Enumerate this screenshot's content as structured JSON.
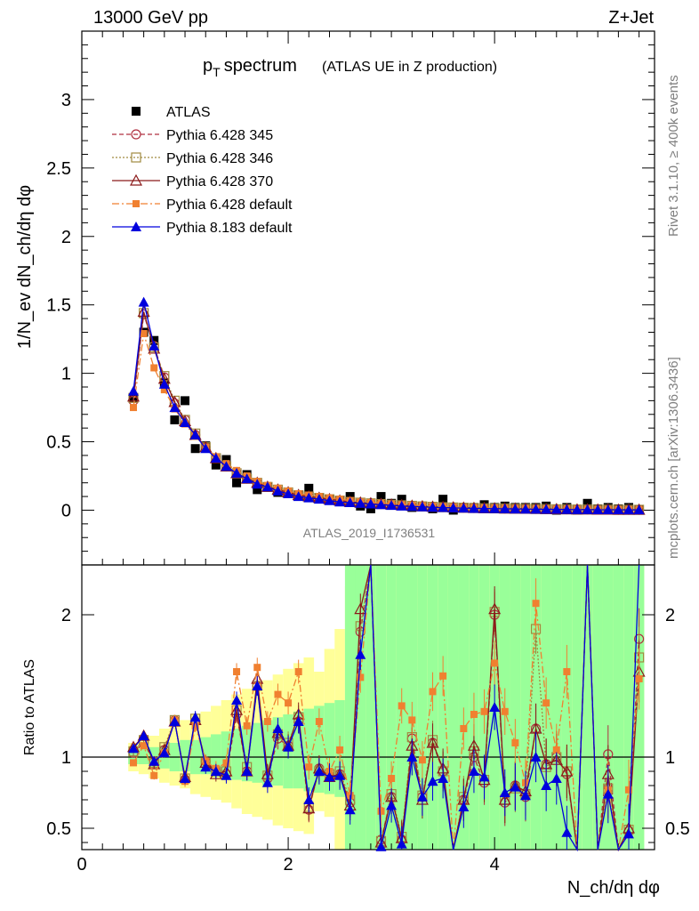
{
  "header": {
    "left": "13000 GeV pp",
    "right": "Z+Jet"
  },
  "side": {
    "top": "Rivet 3.1.10, ≥ 400k events",
    "bottom": "mcplots.cern.ch [arXiv:1306.3436]"
  },
  "chart_data": [
    {
      "type": "line",
      "panel": "main",
      "title": "p_T spectrum",
      "title_main": "p",
      "title_sub": "T",
      "title_word": "spectrum",
      "subtitle": "(ATLAS UE in Z production)",
      "ylabel": "1/N_ev dN_ch/dη dφ",
      "xlabel": "N_ch/dη dφ",
      "watermark": "ATLAS_2019_I1736531",
      "xlim": [
        0,
        5.55
      ],
      "ylim": [
        -0.4,
        3.5
      ],
      "yticks": [
        0,
        0.5,
        1,
        1.5,
        2,
        2.5,
        3
      ],
      "ytick_labels": [
        "0",
        "0.5",
        "1",
        "1.5",
        "2",
        "2.5",
        "3"
      ],
      "x": [
        0.5,
        0.6,
        0.7,
        0.8,
        0.9,
        1.0,
        1.1,
        1.2,
        1.3,
        1.4,
        1.5,
        1.6,
        1.7,
        1.8,
        1.9,
        2.0,
        2.1,
        2.2,
        2.3,
        2.4,
        2.5,
        2.6,
        2.7,
        2.8,
        2.9,
        3.0,
        3.1,
        3.2,
        3.3,
        3.4,
        3.5,
        3.6,
        3.7,
        3.8,
        3.9,
        4.0,
        4.1,
        4.2,
        4.3,
        4.4,
        4.5,
        4.6,
        4.7,
        4.8,
        4.9,
        5.0,
        5.1,
        5.2,
        5.3,
        5.4
      ],
      "series": [
        {
          "name": "ATLAS",
          "style": "data",
          "color": "#000000",
          "values": [
            0.82,
            1.3,
            1.24,
            0.93,
            0.66,
            0.8,
            0.45,
            0.47,
            0.33,
            0.37,
            0.2,
            0.26,
            0.15,
            0.17,
            0.13,
            0.12,
            0.11,
            0.16,
            0.09,
            0.08,
            0.07,
            0.1,
            0.03,
            0.01,
            0.1,
            0.05,
            0.08,
            0.02,
            0.03,
            0.01,
            0.08,
            0.0,
            0.02,
            0.02,
            0.04,
            0.02,
            0.03,
            0.02,
            0.02,
            0.02,
            0.03,
            0.0,
            0.02,
            0.0,
            0.05,
            0.01,
            0.02,
            0.01,
            0.02,
            0.0
          ]
        },
        {
          "name": "Pythia 6.428 345",
          "style": "circle",
          "color": "#b03040",
          "values": [
            0.8,
            1.43,
            1.2,
            0.97,
            0.78,
            0.66,
            0.55,
            0.46,
            0.38,
            0.32,
            0.27,
            0.23,
            0.2,
            0.17,
            0.15,
            0.13,
            0.11,
            0.1,
            0.09,
            0.08,
            0.07,
            0.06,
            0.055,
            0.05,
            0.045,
            0.04,
            0.036,
            0.032,
            0.028,
            0.025,
            0.022,
            0.02,
            0.018,
            0.016,
            0.014,
            0.013,
            0.012,
            0.011,
            0.01,
            0.009,
            0.008,
            0.007,
            0.006,
            0.005,
            0.005,
            0.004,
            0.004,
            0.003,
            0.003,
            0.003
          ]
        },
        {
          "name": "Pythia 6.428 346",
          "style": "square",
          "color": "#a08a40",
          "values": [
            0.82,
            1.44,
            1.19,
            0.98,
            0.8,
            0.66,
            0.56,
            0.46,
            0.38,
            0.32,
            0.27,
            0.23,
            0.2,
            0.17,
            0.15,
            0.13,
            0.11,
            0.1,
            0.09,
            0.08,
            0.07,
            0.06,
            0.055,
            0.05,
            0.045,
            0.04,
            0.036,
            0.032,
            0.028,
            0.025,
            0.022,
            0.02,
            0.018,
            0.016,
            0.014,
            0.013,
            0.012,
            0.011,
            0.01,
            0.009,
            0.008,
            0.007,
            0.006,
            0.005,
            0.005,
            0.004,
            0.004,
            0.003,
            0.003,
            0.003
          ]
        },
        {
          "name": "Pythia 6.428 370",
          "style": "triangle-open",
          "color": "#8b1a1a",
          "values": [
            0.83,
            1.45,
            1.18,
            0.96,
            0.79,
            0.65,
            0.55,
            0.46,
            0.38,
            0.32,
            0.27,
            0.23,
            0.2,
            0.17,
            0.15,
            0.13,
            0.11,
            0.1,
            0.09,
            0.08,
            0.07,
            0.06,
            0.055,
            0.05,
            0.045,
            0.04,
            0.036,
            0.032,
            0.028,
            0.025,
            0.022,
            0.02,
            0.018,
            0.016,
            0.014,
            0.013,
            0.012,
            0.011,
            0.01,
            0.009,
            0.008,
            0.007,
            0.006,
            0.005,
            0.005,
            0.004,
            0.004,
            0.003,
            0.003,
            0.003
          ]
        },
        {
          "name": "Pythia 6.428 default",
          "style": "square-filled",
          "color": "#f08030",
          "values": [
            0.75,
            1.29,
            1.04,
            0.88,
            0.74,
            0.63,
            0.54,
            0.46,
            0.39,
            0.34,
            0.29,
            0.25,
            0.21,
            0.18,
            0.16,
            0.14,
            0.12,
            0.11,
            0.1,
            0.09,
            0.08,
            0.07,
            0.06,
            0.055,
            0.05,
            0.045,
            0.04,
            0.036,
            0.032,
            0.028,
            0.025,
            0.022,
            0.02,
            0.018,
            0.016,
            0.015,
            0.013,
            0.012,
            0.011,
            0.01,
            0.009,
            0.008,
            0.007,
            0.006,
            0.006,
            0.005,
            0.005,
            0.004,
            0.004,
            0.004
          ]
        },
        {
          "name": "Pythia 8.183 default",
          "style": "triangle-filled",
          "color": "#0000dd",
          "values": [
            0.87,
            1.52,
            1.2,
            0.92,
            0.75,
            0.64,
            0.55,
            0.45,
            0.38,
            0.32,
            0.27,
            0.23,
            0.19,
            0.17,
            0.14,
            0.12,
            0.1,
            0.09,
            0.08,
            0.07,
            0.06,
            0.055,
            0.05,
            0.045,
            0.04,
            0.035,
            0.03,
            0.027,
            0.024,
            0.021,
            0.019,
            0.017,
            0.015,
            0.013,
            0.012,
            0.011,
            0.01,
            0.009,
            0.008,
            0.007,
            0.006,
            0.006,
            0.005,
            0.004,
            0.004,
            0.003,
            0.003,
            0.003,
            0.002,
            0.002
          ]
        }
      ]
    },
    {
      "type": "line",
      "panel": "ratio",
      "ylabel": "Ratio to ATLAS",
      "xlim": [
        0,
        5.55
      ],
      "ylim": [
        0.35,
        2.35
      ],
      "yticks": [
        0.5,
        1,
        2
      ],
      "ytick_labels": [
        "0.5",
        "1",
        "2"
      ],
      "xticks": [
        0,
        2,
        4
      ],
      "xtick_labels": [
        "0",
        "2",
        "4"
      ],
      "x": [
        0.5,
        0.6,
        0.7,
        0.8,
        0.9,
        1.0,
        1.1,
        1.2,
        1.3,
        1.4,
        1.5,
        1.6,
        1.7,
        1.8,
        1.9,
        2.0,
        2.1,
        2.2,
        2.3,
        2.4,
        2.5,
        2.6,
        2.7,
        2.8,
        2.9,
        3.0,
        3.1,
        3.2,
        3.3,
        3.4,
        3.5,
        3.6,
        3.7,
        3.8,
        3.9,
        4.0,
        4.1,
        4.2,
        4.3,
        4.4,
        4.5,
        4.6,
        4.7,
        4.8,
        4.9,
        5.0,
        5.1,
        5.2,
        5.3,
        5.4
      ],
      "band_green": [
        [
          0.95,
          1.05
        ],
        [
          0.95,
          1.06
        ],
        [
          0.93,
          1.07
        ],
        [
          0.92,
          1.08
        ],
        [
          0.9,
          1.1
        ],
        [
          0.9,
          1.12
        ],
        [
          0.88,
          1.12
        ],
        [
          0.88,
          1.14
        ],
        [
          0.86,
          1.16
        ],
        [
          0.85,
          1.18
        ],
        [
          0.84,
          1.2
        ],
        [
          0.83,
          1.22
        ],
        [
          0.82,
          1.24
        ],
        [
          0.8,
          1.26
        ],
        [
          0.8,
          1.28
        ],
        [
          0.78,
          1.3
        ],
        [
          0.78,
          1.32
        ],
        [
          0.76,
          1.34
        ],
        [
          0.75,
          1.36
        ],
        [
          0.74,
          1.38
        ],
        [
          0.72,
          1.4
        ],
        [
          0.35,
          2.35
        ],
        [
          0.35,
          2.35
        ],
        [
          0.35,
          2.35
        ],
        [
          0.35,
          2.35
        ],
        [
          0.35,
          2.35
        ],
        [
          0.35,
          2.35
        ],
        [
          0.35,
          2.35
        ],
        [
          0.35,
          2.35
        ],
        [
          0.35,
          2.35
        ],
        [
          0.35,
          2.35
        ],
        [
          0.35,
          2.35
        ],
        [
          0.35,
          2.35
        ],
        [
          0.35,
          2.35
        ],
        [
          0.35,
          2.35
        ],
        [
          0.35,
          2.35
        ],
        [
          0.35,
          2.35
        ],
        [
          0.35,
          2.35
        ],
        [
          0.35,
          2.35
        ],
        [
          0.35,
          2.35
        ],
        [
          0.35,
          2.35
        ],
        [
          0.35,
          2.35
        ],
        [
          0.35,
          2.35
        ],
        [
          0.35,
          2.35
        ],
        [
          0.35,
          2.35
        ],
        [
          0.35,
          2.35
        ],
        [
          0.35,
          2.35
        ],
        [
          0.35,
          2.35
        ],
        [
          0.35,
          2.35
        ],
        [
          0.35,
          2.35
        ]
      ],
      "band_yellow": [
        [
          0.9,
          1.1
        ],
        [
          0.88,
          1.12
        ],
        [
          0.85,
          1.15
        ],
        [
          0.82,
          1.2
        ],
        [
          0.8,
          1.24
        ],
        [
          0.78,
          1.26
        ],
        [
          0.74,
          1.3
        ],
        [
          0.72,
          1.32
        ],
        [
          0.7,
          1.36
        ],
        [
          0.68,
          1.4
        ],
        [
          0.64,
          1.44
        ],
        [
          0.6,
          1.48
        ],
        [
          0.58,
          1.5
        ],
        [
          0.56,
          1.54
        ],
        [
          0.52,
          1.58
        ],
        [
          0.5,
          1.62
        ],
        [
          0.48,
          1.66
        ],
        [
          0.46,
          1.7
        ],
        [
          0.62,
          1.6
        ],
        [
          0.58,
          1.76
        ],
        [
          0.35,
          1.9
        ],
        [
          0.35,
          2.2
        ],
        [
          0.35,
          2.35
        ],
        [
          0.35,
          2.35
        ],
        [
          0.35,
          2.35
        ],
        [
          0.35,
          2.35
        ],
        [
          0.35,
          2.35
        ],
        [
          0.35,
          2.35
        ],
        [
          0.35,
          2.35
        ],
        [
          0.35,
          2.35
        ],
        [
          0.35,
          2.35
        ],
        [
          0.35,
          2.35
        ],
        [
          0.35,
          2.35
        ],
        [
          0.35,
          2.35
        ],
        [
          0.35,
          2.35
        ],
        [
          0.35,
          2.35
        ],
        [
          0.35,
          2.35
        ],
        [
          0.35,
          2.35
        ],
        [
          0.35,
          2.35
        ],
        [
          0.35,
          2.35
        ],
        [
          0.35,
          2.35
        ],
        [
          0.35,
          2.35
        ],
        [
          0.35,
          2.35
        ],
        [
          0.35,
          2.35
        ],
        [
          0.35,
          2.35
        ],
        [
          0.35,
          2.35
        ],
        [
          0.35,
          2.35
        ],
        [
          0.35,
          2.35
        ],
        [
          0.35,
          2.35
        ],
        [
          0.35,
          2.35
        ]
      ],
      "series": [
        {
          "name": "Pythia 6.428 345",
          "style": "circle",
          "color": "#b03040",
          "values": [
            1.03,
            1.1,
            0.97,
            1.05,
            1.26,
            0.84,
            1.25,
            0.97,
            0.9,
            0.88,
            1.3,
            0.9,
            1.5,
            0.85,
            1.13,
            1.08,
            1.25,
            0.63,
            0.92,
            0.87,
            0.88,
            0.68,
            1.88,
            2.6,
            0.42,
            0.72,
            0.42,
            1.13,
            0.72,
            1.1,
            0.9,
            0.3,
            0.7,
            1.0,
            0.82,
            2.0,
            0.68,
            0.8,
            0.72,
            1.2,
            0.95,
            1.0,
            0.88,
            0.3,
            2.6,
            0.3,
            1.02,
            0.3,
            0.48,
            1.83
          ]
        },
        {
          "name": "Pythia 6.428 346",
          "style": "square",
          "color": "#a08a40",
          "values": [
            1.04,
            1.12,
            0.96,
            1.07,
            1.26,
            0.85,
            1.27,
            0.96,
            0.9,
            0.9,
            1.33,
            0.93,
            1.5,
            0.87,
            1.16,
            1.1,
            1.28,
            0.65,
            0.9,
            0.88,
            0.9,
            0.7,
            1.92,
            2.6,
            0.41,
            0.74,
            0.44,
            1.14,
            0.73,
            1.12,
            0.9,
            0.3,
            0.72,
            1.04,
            0.84,
            2.02,
            0.7,
            0.78,
            0.74,
            1.9,
            0.93,
            1.0,
            0.9,
            0.3,
            2.6,
            0.3,
            0.78,
            0.3,
            0.49,
            1.7
          ]
        },
        {
          "name": "Pythia 6.428 370",
          "style": "triangle-open",
          "color": "#8b1a1a",
          "values": [
            1.07,
            1.15,
            0.95,
            1.05,
            1.25,
            0.86,
            1.26,
            0.96,
            0.88,
            0.9,
            1.33,
            0.9,
            1.55,
            0.88,
            1.17,
            1.08,
            1.3,
            0.64,
            0.92,
            0.86,
            0.88,
            0.66,
            2.04,
            2.6,
            0.4,
            0.72,
            0.43,
            1.08,
            0.7,
            1.1,
            0.92,
            0.3,
            0.7,
            1.08,
            0.84,
            2.04,
            0.7,
            0.8,
            0.76,
            1.2,
            0.95,
            0.98,
            0.9,
            0.3,
            2.6,
            0.3,
            0.88,
            0.3,
            0.5,
            1.6
          ]
        },
        {
          "name": "Pythia 6.428 default",
          "style": "square-filled",
          "color": "#f08030",
          "values": [
            0.96,
            1.08,
            0.87,
            1.03,
            1.26,
            0.83,
            1.22,
            0.97,
            0.92,
            0.96,
            1.6,
            1.22,
            1.63,
            1.25,
            1.44,
            1.38,
            1.6,
            0.93,
            1.25,
            0.9,
            1.05,
            0.73,
            1.56,
            2.6,
            0.62,
            0.85,
            1.36,
            1.26,
            0.98,
            1.46,
            1.57,
            0.3,
            1.2,
            1.3,
            1.32,
            1.66,
            1.32,
            1.1,
            0.82,
            2.08,
            1.38,
            1.05,
            1.6,
            0.3,
            2.6,
            0.3,
            0.77,
            0.3,
            0.77,
            1.55
          ]
        },
        {
          "name": "Pythia 8.183 default",
          "style": "triangle-filled",
          "color": "#0000dd",
          "values": [
            1.06,
            1.15,
            0.97,
            1.03,
            1.25,
            0.85,
            1.28,
            0.93,
            0.9,
            0.87,
            1.4,
            0.9,
            1.5,
            0.82,
            1.2,
            1.07,
            1.25,
            0.7,
            0.9,
            0.86,
            0.87,
            0.63,
            1.72,
            2.6,
            0.37,
            0.66,
            0.39,
            1.0,
            0.72,
            0.83,
            0.85,
            0.3,
            0.65,
            0.9,
            0.86,
            1.35,
            0.75,
            0.79,
            0.73,
            1.0,
            0.8,
            0.85,
            0.47,
            0.3,
            2.6,
            0.3,
            0.74,
            0.3,
            0.46,
            2.35
          ]
        }
      ]
    }
  ]
}
